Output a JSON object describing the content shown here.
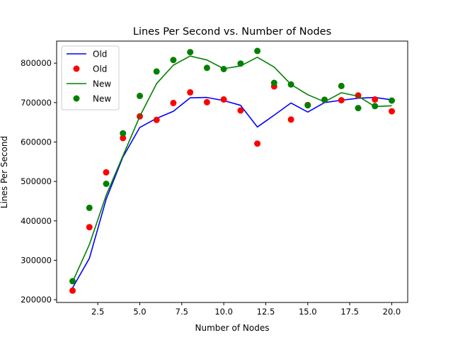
{
  "chart_data": {
    "type": "line",
    "title": "Lines Per Second vs. Number of Nodes",
    "xlabel": "Number of Nodes",
    "ylabel": "Lines Per Second",
    "xlim": [
      0.05,
      20.95
    ],
    "ylim": [
      193000,
      856000
    ],
    "xticks": [
      2.5,
      5.0,
      7.5,
      10.0,
      12.5,
      15.0,
      17.5,
      20.0
    ],
    "xtick_labels": [
      "2.5",
      "5.0",
      "7.5",
      "10.0",
      "12.5",
      "15.0",
      "17.5",
      "20.0"
    ],
    "yticks": [
      200000,
      300000,
      400000,
      500000,
      600000,
      700000,
      800000
    ],
    "ytick_labels": [
      "200000",
      "300000",
      "400000",
      "500000",
      "600000",
      "700000",
      "800000"
    ],
    "grid": false,
    "legend_position": "top-left",
    "x": [
      1,
      2,
      3,
      4,
      5,
      6,
      7,
      8,
      9,
      10,
      11,
      12,
      13,
      14,
      15,
      16,
      17,
      18,
      19,
      20
    ],
    "series": [
      {
        "name": "Old",
        "kind": "line",
        "color": "#0000ff",
        "values": [
          230000,
          305000,
          455000,
          562000,
          637000,
          660000,
          678000,
          712000,
          713000,
          705000,
          693000,
          638000,
          668000,
          699000,
          676000,
          700000,
          706000,
          711000,
          713000,
          707000
        ]
      },
      {
        "name": "Old",
        "kind": "scatter",
        "color": "#ff0000",
        "values": [
          223000,
          384000,
          523000,
          610000,
          665000,
          656000,
          699000,
          726000,
          701000,
          708000,
          680000,
          596000,
          741000,
          657000,
          694000,
          707000,
          706000,
          718000,
          708000,
          678000
        ]
      },
      {
        "name": "New",
        "kind": "line",
        "color": "#008000",
        "values": [
          245000,
          340000,
          465000,
          565000,
          665000,
          748000,
          795000,
          818000,
          808000,
          786000,
          793000,
          815000,
          790000,
          746000,
          720000,
          702000,
          725000,
          716000,
          690000,
          692000
        ]
      },
      {
        "name": "New",
        "kind": "scatter",
        "color": "#008000",
        "values": [
          247000,
          433000,
          494000,
          622000,
          717000,
          779000,
          808000,
          828000,
          788000,
          785000,
          799000,
          831000,
          750000,
          746000,
          693000,
          707000,
          742000,
          686000,
          691000,
          705000
        ]
      }
    ]
  }
}
